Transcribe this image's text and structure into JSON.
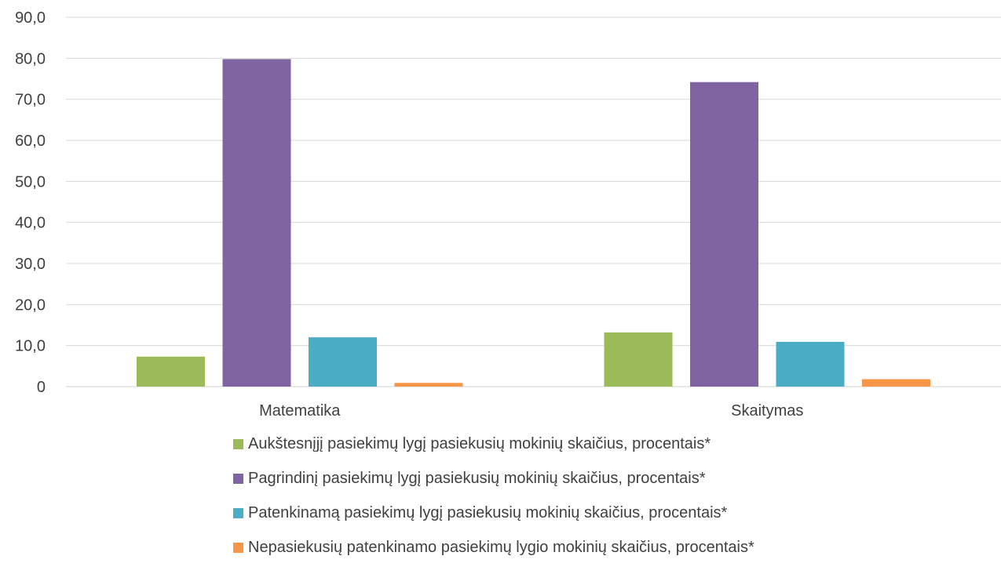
{
  "chart_data": {
    "type": "bar",
    "categories": [
      "Matematika",
      "Skaitymas"
    ],
    "series": [
      {
        "name": "Aukštesnįjį pasiekimų lygį pasiekusių mokinių skaičius, procentais*",
        "color": "#9bbb59",
        "values": [
          7.3,
          13.2
        ]
      },
      {
        "name": "Pagrindinį pasiekimų lygį pasiekusių mokinių skaičius, procentais*",
        "color": "#8064a2",
        "values": [
          79.8,
          74.2
        ]
      },
      {
        "name": "Patenkinamą pasiekimų lygį pasiekusių mokinių skaičius, procentais*",
        "color": "#4bacc6",
        "values": [
          12.0,
          10.9
        ]
      },
      {
        "name": "Nepasiekusių patenkinamo pasiekimų lygio mokinių skaičius, procentais*",
        "color": "#f79646",
        "values": [
          0.9,
          1.8
        ]
      }
    ],
    "ylim": [
      0,
      90
    ],
    "y_ticks": [
      "0",
      "10,0",
      "20,0",
      "30,0",
      "40,0",
      "50,0",
      "60,0",
      "70,0",
      "80,0",
      "90,0"
    ],
    "grid": true,
    "legend_position": "bottom"
  }
}
